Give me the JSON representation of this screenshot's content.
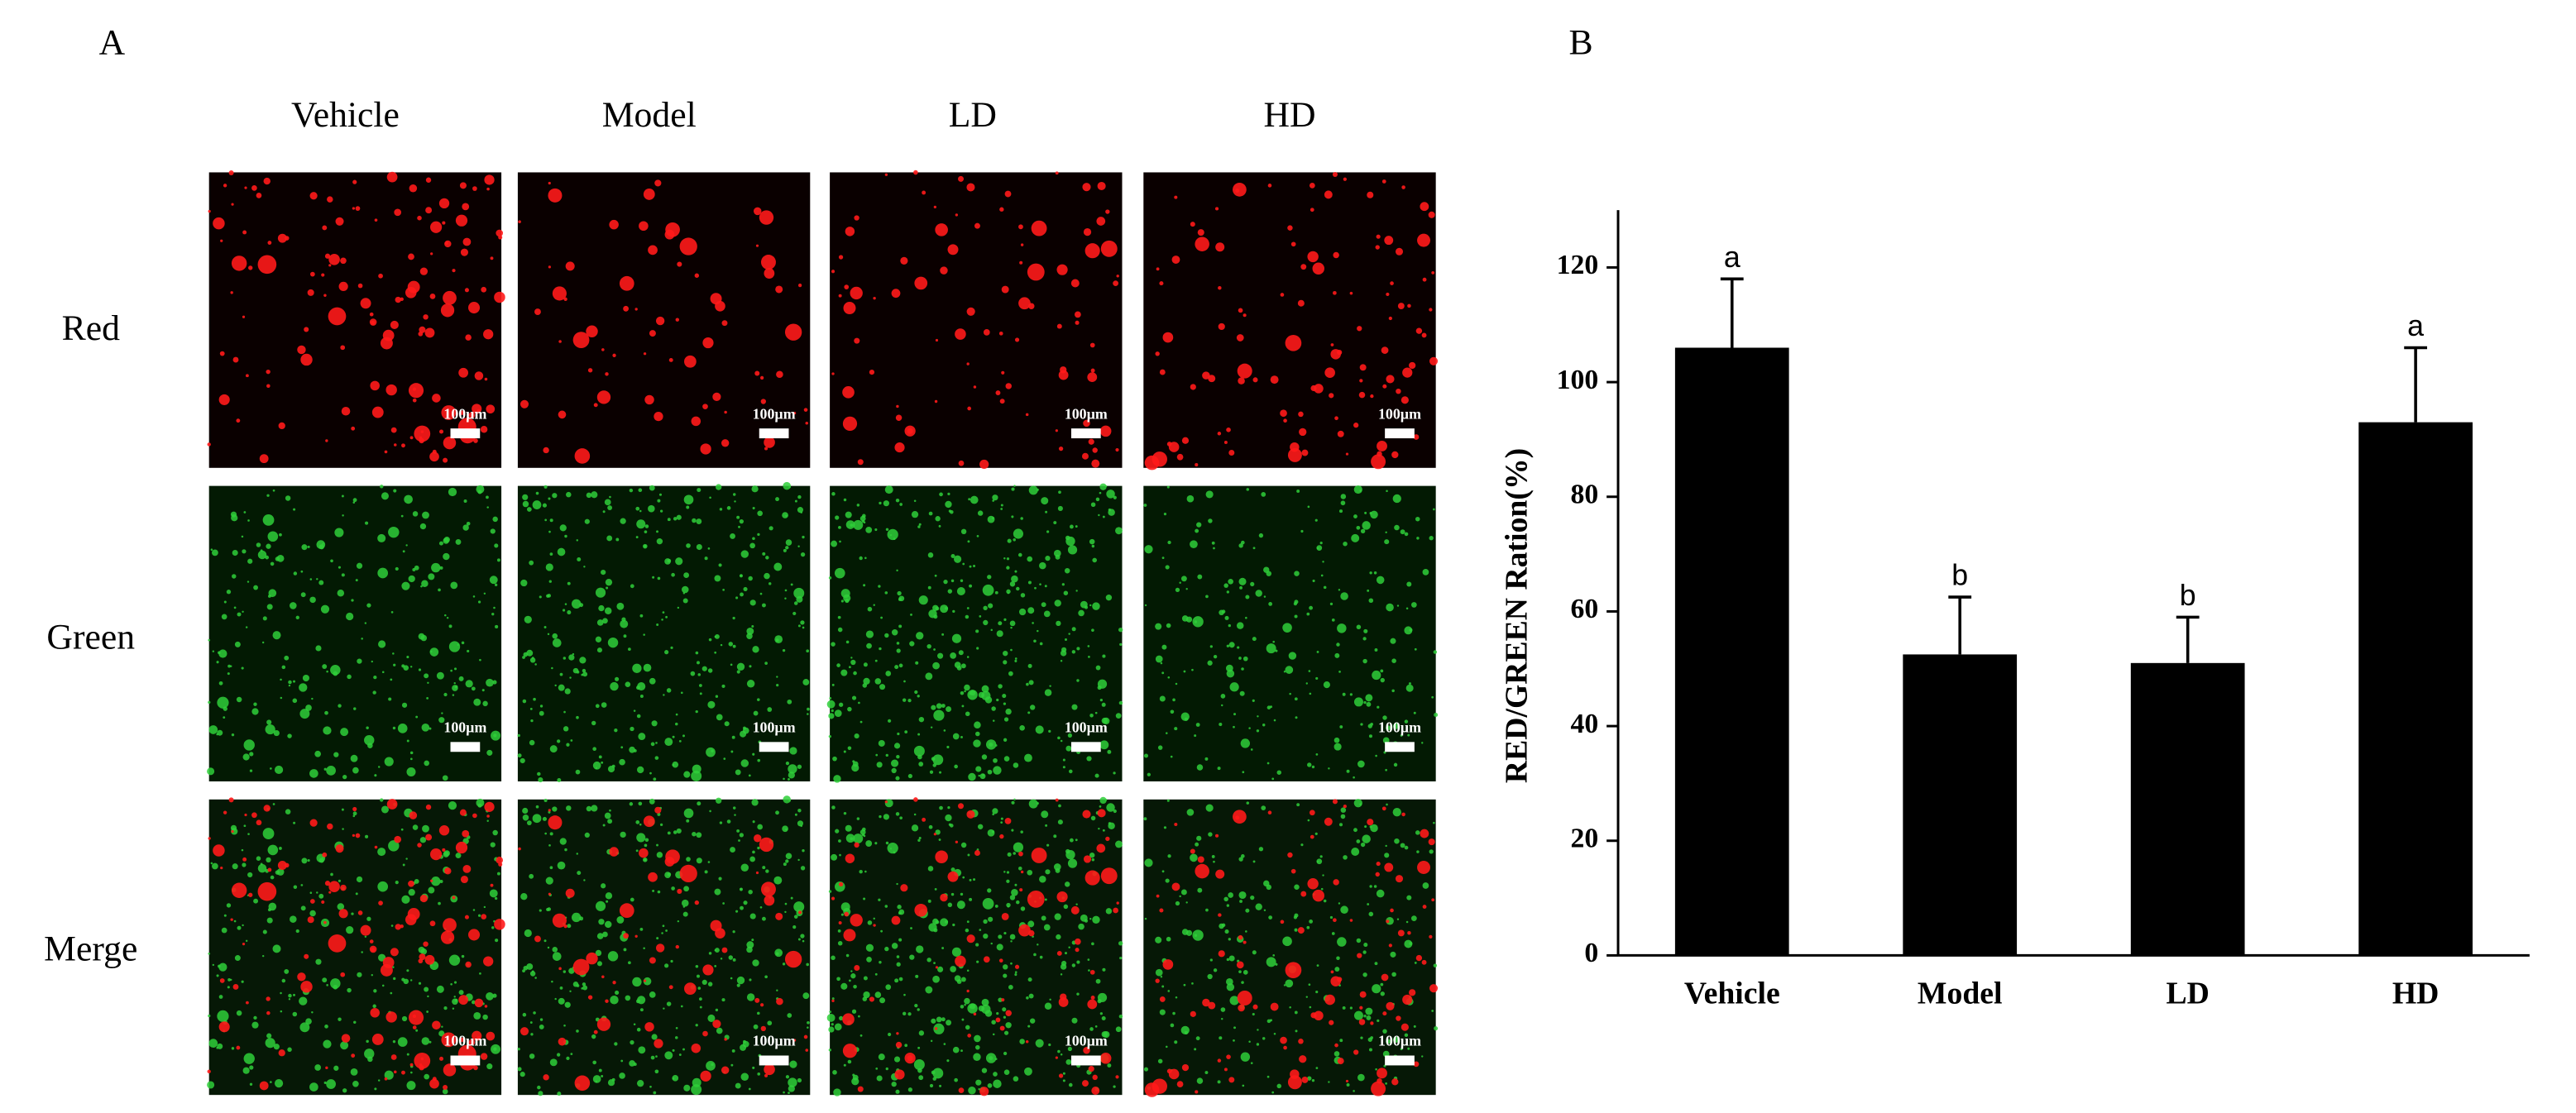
{
  "panel_a": {
    "label": "A",
    "columns": [
      "Vehicle",
      "Model",
      "LD",
      "HD"
    ],
    "rows": [
      "Red",
      "Green",
      "Merge"
    ],
    "scale_bar": "100µm"
  },
  "chart_data": {
    "type": "bar",
    "label": "B",
    "y_label": "RED/GREEN Ration(%)",
    "categories": [
      "Vehicle",
      "Model",
      "LD",
      "HD"
    ],
    "values": [
      106,
      52.5,
      51,
      93
    ],
    "errors": [
      12,
      10,
      8,
      13
    ],
    "annotations": [
      "a",
      "b",
      "b",
      "a"
    ],
    "color": "#000000",
    "ylim": [
      0,
      130
    ],
    "yticks": [
      0,
      20,
      40,
      60,
      80,
      100,
      120
    ]
  }
}
